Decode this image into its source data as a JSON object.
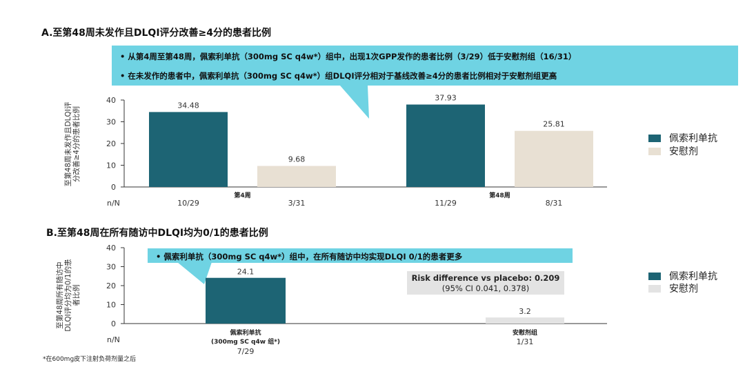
{
  "colors": {
    "drug": "#1d6474",
    "placebo": "#e8e0d3",
    "placebo_b": "#e3e3e3",
    "callout": "#6fd3e3"
  },
  "panelA": {
    "title": "A.至第48周未发作且DLQI评分改善≥4分的患者比例",
    "ylabel_line1": "至第48周未发作且DLQI评",
    "ylabel_line2": "分改善≥4分的患者比例",
    "callout": [
      "•   从第4周至第48周，佩索利单抗（300mg SC q4w*）组中，出现1次GPP发作的患者比例（3/29）低于安慰剂组（16/31）",
      "•   在未发作的患者中，佩索利单抗（300mg SC q4w*）组DLQI评分相对于基线改善≥4分的患者比例相对于安慰剂组更高"
    ],
    "nn_label": "n/N",
    "legend": [
      "佩索利单抗",
      "安慰剂"
    ]
  },
  "panelB": {
    "title": "B.至第48周在所有随访中DLQI均为0/1的患者比例",
    "ylabel_line1": "至第48周所有随访中",
    "ylabel_line2": "DLQI评分均为0/1的患",
    "ylabel_line3": "者比例",
    "callout": "•   佩索利单抗（300mg SC q4w*）组中，在所有随访中均实现DLQI 0/1的患者更多",
    "risk_line1": "Risk difference vs placebo: 0.209",
    "risk_line2": "(95% CI 0.041, 0.378)",
    "nn_label": "n/N",
    "legend": [
      "佩索利单抗",
      "安慰剂"
    ]
  },
  "footnote": "*在600mg皮下注射负荷剂量之后",
  "chart_data": [
    {
      "type": "bar",
      "title": "A.至第48周未发作且DLQI评分改善≥4分的患者比例",
      "ylabel": "至第48周未发作且DLQI评分改善≥4分的患者比例",
      "ylim": [
        0,
        40
      ],
      "yticks": [
        0,
        10,
        20,
        30,
        40
      ],
      "categories": [
        "第4周",
        "第48周"
      ],
      "series": [
        {
          "name": "佩索利单抗",
          "values": [
            34.48,
            37.93
          ],
          "nn": [
            "10/29",
            "11/29"
          ]
        },
        {
          "name": "安慰剂",
          "values": [
            9.68,
            25.81
          ],
          "nn": [
            "3/31",
            "8/31"
          ]
        }
      ],
      "legend": "right",
      "grid": false
    },
    {
      "type": "bar",
      "title": "B.至第48周在所有随访中DLQI均为0/1的患者比例",
      "ylabel": "至第48周所有随访中DLQI评分均为0/1的患者比例",
      "ylim": [
        0,
        40
      ],
      "yticks": [
        0,
        10,
        20,
        30,
        40
      ],
      "categories": [
        "佩索利单抗\n(300mg SC q4w 组*)",
        "安慰剂组"
      ],
      "values": [
        24.1,
        3.2
      ],
      "nn": [
        "7/29",
        "1/31"
      ],
      "legend": "right",
      "grid": false
    }
  ]
}
